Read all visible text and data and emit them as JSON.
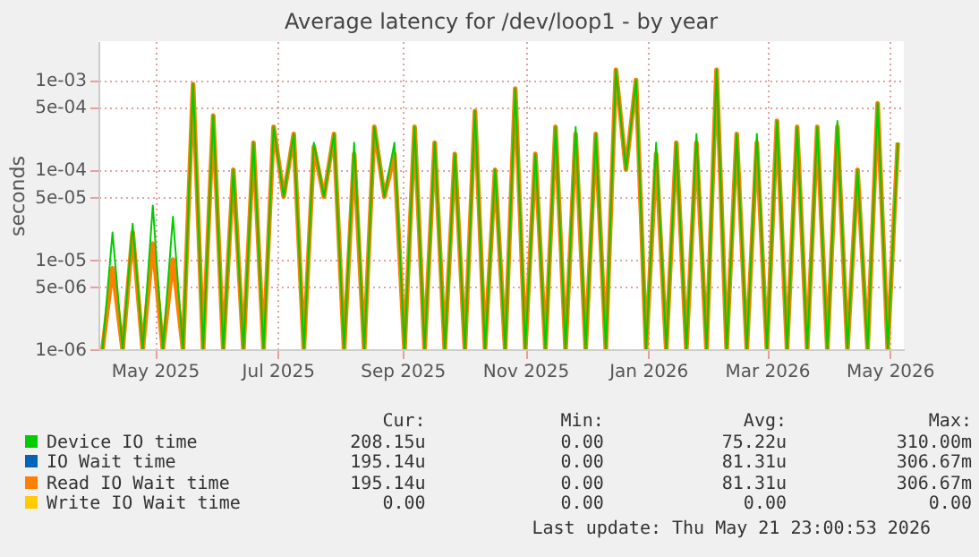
{
  "chart_data": {
    "type": "line",
    "title": "Average latency for /dev/loop1 - by year",
    "ylabel": "seconds",
    "log": "y",
    "grid": true,
    "legend": "bottom",
    "xlim": [
      "2025-04-18",
      "2026-05-23"
    ],
    "xticks": [
      {
        "value": "2025-05-16",
        "label": "May 2025"
      },
      {
        "value": "2025-07-16",
        "label": "Jul 2025"
      },
      {
        "value": "2025-09-16",
        "label": "Sep 2025"
      },
      {
        "value": "2025-11-16",
        "label": "Nov 2025"
      },
      {
        "value": "2026-01-16",
        "label": "Jan 2026"
      },
      {
        "value": "2026-03-16",
        "label": "Mar 2026"
      },
      {
        "value": "2026-05-16",
        "label": "May 2026"
      }
    ],
    "ylim": [
      1e-06,
      0.0027
    ],
    "yticks": [
      {
        "value": 1e-06,
        "label": "1e-06"
      },
      {
        "value": 5e-06,
        "label": "5e-06"
      },
      {
        "value": 1e-05,
        "label": "1e-05"
      },
      {
        "value": 5e-05,
        "label": "5e-05"
      },
      {
        "value": 0.0001,
        "label": "1e-04"
      },
      {
        "value": 0.0005,
        "label": "5e-04"
      },
      {
        "value": 0.001,
        "label": "1e-03"
      }
    ],
    "x": [
      "2025-04-20",
      "2025-04-25",
      "2025-04-30",
      "2025-05-05",
      "2025-05-10",
      "2025-05-15",
      "2025-05-20",
      "2025-05-25",
      "2025-05-30",
      "2025-06-04",
      "2025-06-09",
      "2025-06-14",
      "2025-06-19",
      "2025-06-24",
      "2025-06-29",
      "2025-07-04",
      "2025-07-09",
      "2025-07-14",
      "2025-07-19",
      "2025-07-24",
      "2025-07-29",
      "2025-08-03",
      "2025-08-08",
      "2025-08-13",
      "2025-08-18",
      "2025-08-23",
      "2025-08-28",
      "2025-09-02",
      "2025-09-07",
      "2025-09-12",
      "2025-09-17",
      "2025-09-22",
      "2025-09-27",
      "2025-10-02",
      "2025-10-07",
      "2025-10-12",
      "2025-10-17",
      "2025-10-22",
      "2025-10-27",
      "2025-11-01",
      "2025-11-06",
      "2025-11-11",
      "2025-11-16",
      "2025-11-21",
      "2025-11-26",
      "2025-12-01",
      "2025-12-06",
      "2025-12-11",
      "2025-12-16",
      "2025-12-21",
      "2025-12-26",
      "2025-12-31",
      "2026-01-05",
      "2026-01-10",
      "2026-01-15",
      "2026-01-20",
      "2026-01-25",
      "2026-01-30",
      "2026-02-04",
      "2026-02-09",
      "2026-02-14",
      "2026-02-19",
      "2026-02-24",
      "2026-03-01",
      "2026-03-06",
      "2026-03-11",
      "2026-03-16",
      "2026-03-21",
      "2026-03-26",
      "2026-03-31",
      "2026-04-05",
      "2026-04-10",
      "2026-04-15",
      "2026-04-20",
      "2026-04-25",
      "2026-04-30",
      "2026-05-05",
      "2026-05-10",
      "2026-05-15",
      "2026-05-20"
    ],
    "series": [
      {
        "name": "Device IO time",
        "color": "#00cc00",
        "values": [
          1e-06,
          2e-05,
          1e-06,
          2.5e-05,
          1e-06,
          4e-05,
          1e-06,
          3e-05,
          1e-06,
          0.0009,
          1e-06,
          0.0004,
          1e-06,
          0.0001,
          1e-06,
          0.0002,
          1e-06,
          0.0003,
          5e-05,
          0.00025,
          1e-06,
          0.0002,
          5e-05,
          0.00025,
          1e-06,
          0.0002,
          1e-06,
          0.0003,
          5e-05,
          0.0002,
          1e-06,
          0.0003,
          1e-06,
          0.0002,
          1e-06,
          0.00015,
          1e-06,
          0.00045,
          1e-06,
          0.0001,
          1e-06,
          0.0008,
          1e-06,
          0.00015,
          1e-06,
          0.0003,
          1e-06,
          0.0003,
          1e-06,
          0.00025,
          1e-06,
          0.0013,
          0.0001,
          0.001,
          1e-06,
          0.0002,
          1e-06,
          0.0002,
          1e-06,
          0.00025,
          1e-06,
          0.0013,
          1e-06,
          0.00025,
          1e-06,
          0.00025,
          1e-06,
          0.00035,
          1e-06,
          0.0003,
          1e-06,
          0.0003,
          1e-06,
          0.00035,
          1e-06,
          0.0001,
          1e-06,
          0.00055,
          1e-06,
          0.0002
        ]
      },
      {
        "name": "IO Wait time",
        "color": "#0066b3",
        "values": [
          null,
          null,
          null,
          null,
          null,
          null,
          null,
          null,
          null,
          null,
          null,
          null,
          null,
          null,
          null,
          null,
          null,
          null,
          null,
          null,
          null,
          null,
          null,
          null,
          null,
          null,
          null,
          null,
          null,
          null,
          null,
          null,
          null,
          null,
          null,
          null,
          null,
          null,
          null,
          null,
          null,
          null,
          null,
          null,
          null,
          null,
          null,
          null,
          null,
          null,
          null,
          null,
          null,
          null,
          null,
          null,
          null,
          null,
          null,
          null,
          null,
          null,
          null,
          null,
          null,
          null,
          null,
          null,
          null,
          null,
          null,
          null,
          null,
          null,
          null,
          null,
          null,
          null,
          null,
          null
        ]
      },
      {
        "name": "Read IO Wait time",
        "color": "#ff8000",
        "values": [
          1e-06,
          8e-06,
          1e-06,
          2e-05,
          1e-06,
          1.5e-05,
          1e-06,
          1e-05,
          1e-06,
          0.0009,
          1e-06,
          0.0004,
          1e-06,
          0.0001,
          1e-06,
          0.0002,
          1e-06,
          0.0003,
          5e-05,
          0.00025,
          1e-06,
          0.00018,
          5e-05,
          0.00025,
          1e-06,
          0.00015,
          1e-06,
          0.0003,
          5e-05,
          0.00015,
          1e-06,
          0.0003,
          1e-06,
          0.0002,
          1e-06,
          0.00015,
          1e-06,
          0.00045,
          1e-06,
          0.0001,
          1e-06,
          0.0008,
          1e-06,
          0.00015,
          1e-06,
          0.0003,
          1e-06,
          0.00025,
          1e-06,
          0.00025,
          1e-06,
          0.0013,
          0.0001,
          0.001,
          1e-06,
          0.00015,
          1e-06,
          0.0002,
          1e-06,
          0.0002,
          1e-06,
          0.0013,
          1e-06,
          0.00025,
          1e-06,
          0.0002,
          1e-06,
          0.00035,
          1e-06,
          0.0003,
          1e-06,
          0.0003,
          1e-06,
          0.0003,
          1e-06,
          0.0001,
          1e-06,
          0.00055,
          1e-06,
          0.0002
        ]
      },
      {
        "name": "Write IO Wait time",
        "color": "#ffcc00",
        "values": [
          null,
          null,
          null,
          null,
          null,
          null,
          null,
          null,
          null,
          null,
          null,
          null,
          null,
          null,
          null,
          null,
          null,
          null,
          null,
          null,
          null,
          null,
          null,
          null,
          null,
          null,
          null,
          null,
          null,
          null,
          null,
          null,
          null,
          null,
          null,
          null,
          null,
          null,
          null,
          null,
          null,
          null,
          null,
          null,
          null,
          null,
          null,
          null,
          null,
          null,
          null,
          null,
          null,
          null,
          null,
          null,
          null,
          null,
          null,
          null,
          null,
          null,
          null,
          null,
          null,
          null,
          null,
          null,
          null,
          null,
          null,
          null,
          null,
          null,
          null,
          null,
          null,
          null,
          null,
          null
        ]
      }
    ],
    "annotations": [
      "Cur:",
      "Min:",
      "Avg:",
      "Max:",
      "208.15u",
      "0.00",
      "75.22u",
      "310.00m",
      "195.14u",
      "0.00",
      "81.31u",
      "306.67m",
      "195.14u",
      "0.00",
      "81.31u",
      "306.67m",
      "0.00",
      "0.00",
      "0.00",
      "0.00",
      "Last update: Thu May 21 23:00:53 2026"
    ]
  }
}
